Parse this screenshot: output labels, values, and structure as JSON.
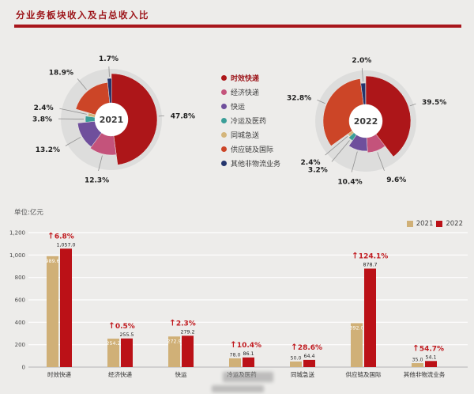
{
  "header": {
    "title": "分业务板块收入及占总收入比"
  },
  "colors": {
    "accent": "#9c1318",
    "underline": "#a8161c",
    "bar_2021": "#d0b077",
    "bar_2022": "#bb1117",
    "growth": "#c01a1f",
    "pie_backdrop": "#dddddc",
    "background": "#edecea"
  },
  "legend": {
    "items": [
      {
        "label": "时效快递",
        "color": "#ad1619"
      },
      {
        "label": "经济快递",
        "color": "#c4537b"
      },
      {
        "label": "快运",
        "color": "#6f4f9c"
      },
      {
        "label": "冷运及医药",
        "color": "#3b9e98"
      },
      {
        "label": "同城急送",
        "color": "#d4b57a"
      },
      {
        "label": "供应链及国际",
        "color": "#cc4527"
      },
      {
        "label": "其他非物流业务",
        "color": "#24356d"
      }
    ]
  },
  "chart_data": [
    {
      "type": "pie",
      "title": "2021",
      "labels": [
        "时效快递",
        "经济快递",
        "快运",
        "冷运及医药",
        "同城急送",
        "供应链及国际",
        "其他非物流业务"
      ],
      "values": [
        47.8,
        12.3,
        13.2,
        3.8,
        2.4,
        18.9,
        1.7
      ],
      "unit": "%",
      "radii": [
        58,
        45,
        43,
        33,
        30,
        47,
        52
      ]
    },
    {
      "type": "pie",
      "title": "2022",
      "labels": [
        "时效快递",
        "经济快递",
        "快运",
        "冷运及医药",
        "同城急送",
        "供应链及国际",
        "其他非物流业务"
      ],
      "values": [
        39.5,
        9.6,
        10.4,
        3.2,
        2.4,
        32.8,
        2.0
      ],
      "unit": "%",
      "radii": [
        57,
        40,
        38,
        30,
        28,
        54,
        48
      ]
    },
    {
      "type": "bar",
      "unit_label": "单位:亿元",
      "categories": [
        "时效快递",
        "经济快递",
        "快运",
        "冷运及医药",
        "同城急送",
        "供应链及国际",
        "其他非物流业务"
      ],
      "series": [
        {
          "name": "2021",
          "values": [
            989.6,
            254.2,
            272.9,
            78.0,
            50.0,
            392.0,
            35.0
          ],
          "labels": [
            "989.6",
            "254.2",
            "272.9",
            "78.0",
            "50.0",
            "392.0",
            "35.0"
          ]
        },
        {
          "name": "2022",
          "values": [
            1057.0,
            255.5,
            279.2,
            86.1,
            64.4,
            878.7,
            54.1
          ],
          "labels": [
            "1,057.0",
            "255.5",
            "279.2",
            "86.1",
            "64.4",
            "878.7",
            "54.1"
          ]
        }
      ],
      "growth_labels": [
        "6.8%",
        "0.5%",
        "2.3%",
        "10.4%",
        "28.6%",
        "124.1%",
        "54.7%"
      ],
      "yticks": [
        "0",
        "200",
        "400",
        "600",
        "800",
        "1,000",
        "1,200"
      ],
      "ylim": [
        0,
        1200
      ],
      "grid": true,
      "legend_position": "top-right"
    }
  ]
}
